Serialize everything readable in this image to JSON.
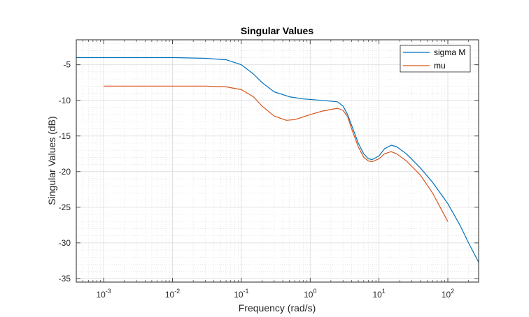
{
  "chart_data": {
    "type": "line",
    "title": "Singular Values",
    "xlabel": "Frequency (rad/s)",
    "ylabel": "Singular Values (dB)",
    "x_scale": "log",
    "xlim": [
      0.0004,
      280
    ],
    "ylim": [
      -35.5,
      -1.5
    ],
    "x_ticks": [
      {
        "value": 0.001,
        "base": "10",
        "exp": "-3"
      },
      {
        "value": 0.01,
        "base": "10",
        "exp": "-2"
      },
      {
        "value": 0.1,
        "base": "10",
        "exp": "-1"
      },
      {
        "value": 1,
        "base": "10",
        "exp": "0"
      },
      {
        "value": 10,
        "base": "10",
        "exp": "1"
      },
      {
        "value": 100,
        "base": "10",
        "exp": "2"
      }
    ],
    "y_ticks": [
      -5,
      -10,
      -15,
      -20,
      -25,
      -30,
      -35
    ],
    "y_tick_labels": [
      "-5",
      "-10",
      "-15",
      "-20",
      "-25",
      "-30",
      "-35"
    ],
    "grid": true,
    "minor_grid": true,
    "legend_position": "top-right",
    "series": [
      {
        "name": "sigma M",
        "color": "#0072BD",
        "points": [
          [
            0.0004,
            -4.0
          ],
          [
            0.01,
            -4.0
          ],
          [
            0.03,
            -4.1
          ],
          [
            0.06,
            -4.3
          ],
          [
            0.1,
            -5.0
          ],
          [
            0.15,
            -6.3
          ],
          [
            0.2,
            -7.5
          ],
          [
            0.3,
            -8.8
          ],
          [
            0.5,
            -9.5
          ],
          [
            0.8,
            -9.8
          ],
          [
            1.5,
            -10.0
          ],
          [
            2.5,
            -10.2
          ],
          [
            3.0,
            -10.8
          ],
          [
            3.5,
            -12.0
          ],
          [
            4.0,
            -13.5
          ],
          [
            5.0,
            -16.0
          ],
          [
            6.0,
            -17.5
          ],
          [
            7.0,
            -18.2
          ],
          [
            8.0,
            -18.3
          ],
          [
            10.0,
            -17.8
          ],
          [
            12.0,
            -16.8
          ],
          [
            15.0,
            -16.3
          ],
          [
            18.0,
            -16.5
          ],
          [
            25.0,
            -17.5
          ],
          [
            40.0,
            -19.5
          ],
          [
            60.0,
            -21.5
          ],
          [
            100.0,
            -24.5
          ],
          [
            150.0,
            -27.5
          ],
          [
            200.0,
            -30.0
          ],
          [
            280.0,
            -32.7
          ]
        ]
      },
      {
        "name": "mu",
        "color": "#D95319",
        "points": [
          [
            0.001,
            -8.0
          ],
          [
            0.01,
            -8.0
          ],
          [
            0.03,
            -8.0
          ],
          [
            0.06,
            -8.1
          ],
          [
            0.1,
            -8.5
          ],
          [
            0.15,
            -9.5
          ],
          [
            0.2,
            -10.8
          ],
          [
            0.3,
            -12.2
          ],
          [
            0.45,
            -12.8
          ],
          [
            0.6,
            -12.7
          ],
          [
            1.0,
            -12.0
          ],
          [
            1.5,
            -11.5
          ],
          [
            2.5,
            -11.1
          ],
          [
            3.0,
            -11.4
          ],
          [
            3.5,
            -12.3
          ],
          [
            4.0,
            -14.0
          ],
          [
            5.0,
            -16.5
          ],
          [
            6.0,
            -18.0
          ],
          [
            7.0,
            -18.5
          ],
          [
            8.0,
            -18.6
          ],
          [
            10.0,
            -18.2
          ],
          [
            12.0,
            -17.5
          ],
          [
            15.0,
            -17.2
          ],
          [
            18.0,
            -17.5
          ],
          [
            25.0,
            -18.5
          ],
          [
            40.0,
            -20.5
          ],
          [
            60.0,
            -23.0
          ],
          [
            100.0,
            -27.0
          ]
        ]
      }
    ]
  }
}
